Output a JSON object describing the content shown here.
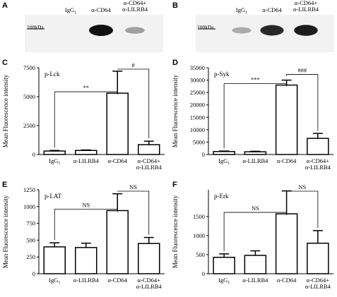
{
  "blots": [
    {
      "panel": "A",
      "marker": "100kDa",
      "lanes": [
        "IgG1",
        "α-CD64",
        "α-CD64+|α-LILRB4"
      ],
      "band_intensity": [
        0.0,
        1.0,
        0.35
      ]
    },
    {
      "panel": "B",
      "marker": "100kDa",
      "lanes": [
        "IgG1",
        "α-CD64",
        "α-CD64+|α-LILRB4"
      ],
      "band_intensity": [
        0.3,
        0.9,
        0.95
      ]
    }
  ],
  "chart_data": [
    {
      "panel": "C",
      "type": "bar",
      "annotation": "p-Lck",
      "ylabel": "Mean Fluorescence intensity",
      "categories": [
        "IgG1",
        "α-LILRB4",
        "α-CD64",
        "α-CD64+|α-LILRB4"
      ],
      "values": [
        300,
        350,
        5300,
        850
      ],
      "errors": [
        50,
        40,
        1900,
        300
      ],
      "ylim": [
        0,
        7500
      ],
      "yticks": [
        0,
        2500,
        5000,
        7500
      ],
      "significance": [
        {
          "from": 0,
          "to": 2,
          "label": "**"
        },
        {
          "from": 2,
          "to": 3,
          "label": "#"
        }
      ]
    },
    {
      "panel": "D",
      "type": "bar",
      "annotation": "p-Syk",
      "ylabel": "Mean Fluorescence intensity",
      "categories": [
        "IgG1",
        "α-LILRB4",
        "α-CD64",
        "α-CD64+|α-LILRB4"
      ],
      "values": [
        1200,
        1100,
        28000,
        6500
      ],
      "errors": [
        200,
        200,
        2000,
        2000
      ],
      "ylim": [
        0,
        35000
      ],
      "yticks": [
        0,
        5000,
        10000,
        15000,
        20000,
        25000,
        30000,
        35000
      ],
      "significance": [
        {
          "from": 0,
          "to": 2,
          "label": "***"
        },
        {
          "from": 2,
          "to": 3,
          "label": "###"
        }
      ]
    },
    {
      "panel": "E",
      "type": "bar",
      "annotation": "p-LAT",
      "ylabel": "Mean Fluorescence intensity",
      "categories": [
        "IgG1",
        "α-LILRB4",
        "α-CD64",
        "α-CD64+|α-LILRB4"
      ],
      "values": [
        400,
        390,
        940,
        450
      ],
      "errors": [
        60,
        65,
        250,
        90
      ],
      "ylim": [
        0,
        1250
      ],
      "yticks": [
        0,
        250,
        500,
        750,
        1000,
        1250
      ],
      "significance": [
        {
          "from": 0,
          "to": 2,
          "label": "NS"
        },
        {
          "from": 2,
          "to": 3,
          "label": "NS"
        }
      ]
    },
    {
      "panel": "F",
      "type": "bar",
      "annotation": "p-Erk",
      "ylabel": "Mean Fluorescence intensity",
      "categories": [
        "IgG1",
        "α-LILRB4",
        "α-CD64",
        "α-CD64+|α-LILRB4"
      ],
      "values": [
        430,
        480,
        1570,
        800
      ],
      "errors": [
        90,
        120,
        600,
        330
      ],
      "ylim": [
        0,
        2200
      ],
      "yticks": [
        0,
        500,
        1000,
        1500
      ],
      "significance": [
        {
          "from": 0,
          "to": 2,
          "label": "NS"
        },
        {
          "from": 2,
          "to": 3,
          "label": "NS"
        }
      ]
    }
  ]
}
